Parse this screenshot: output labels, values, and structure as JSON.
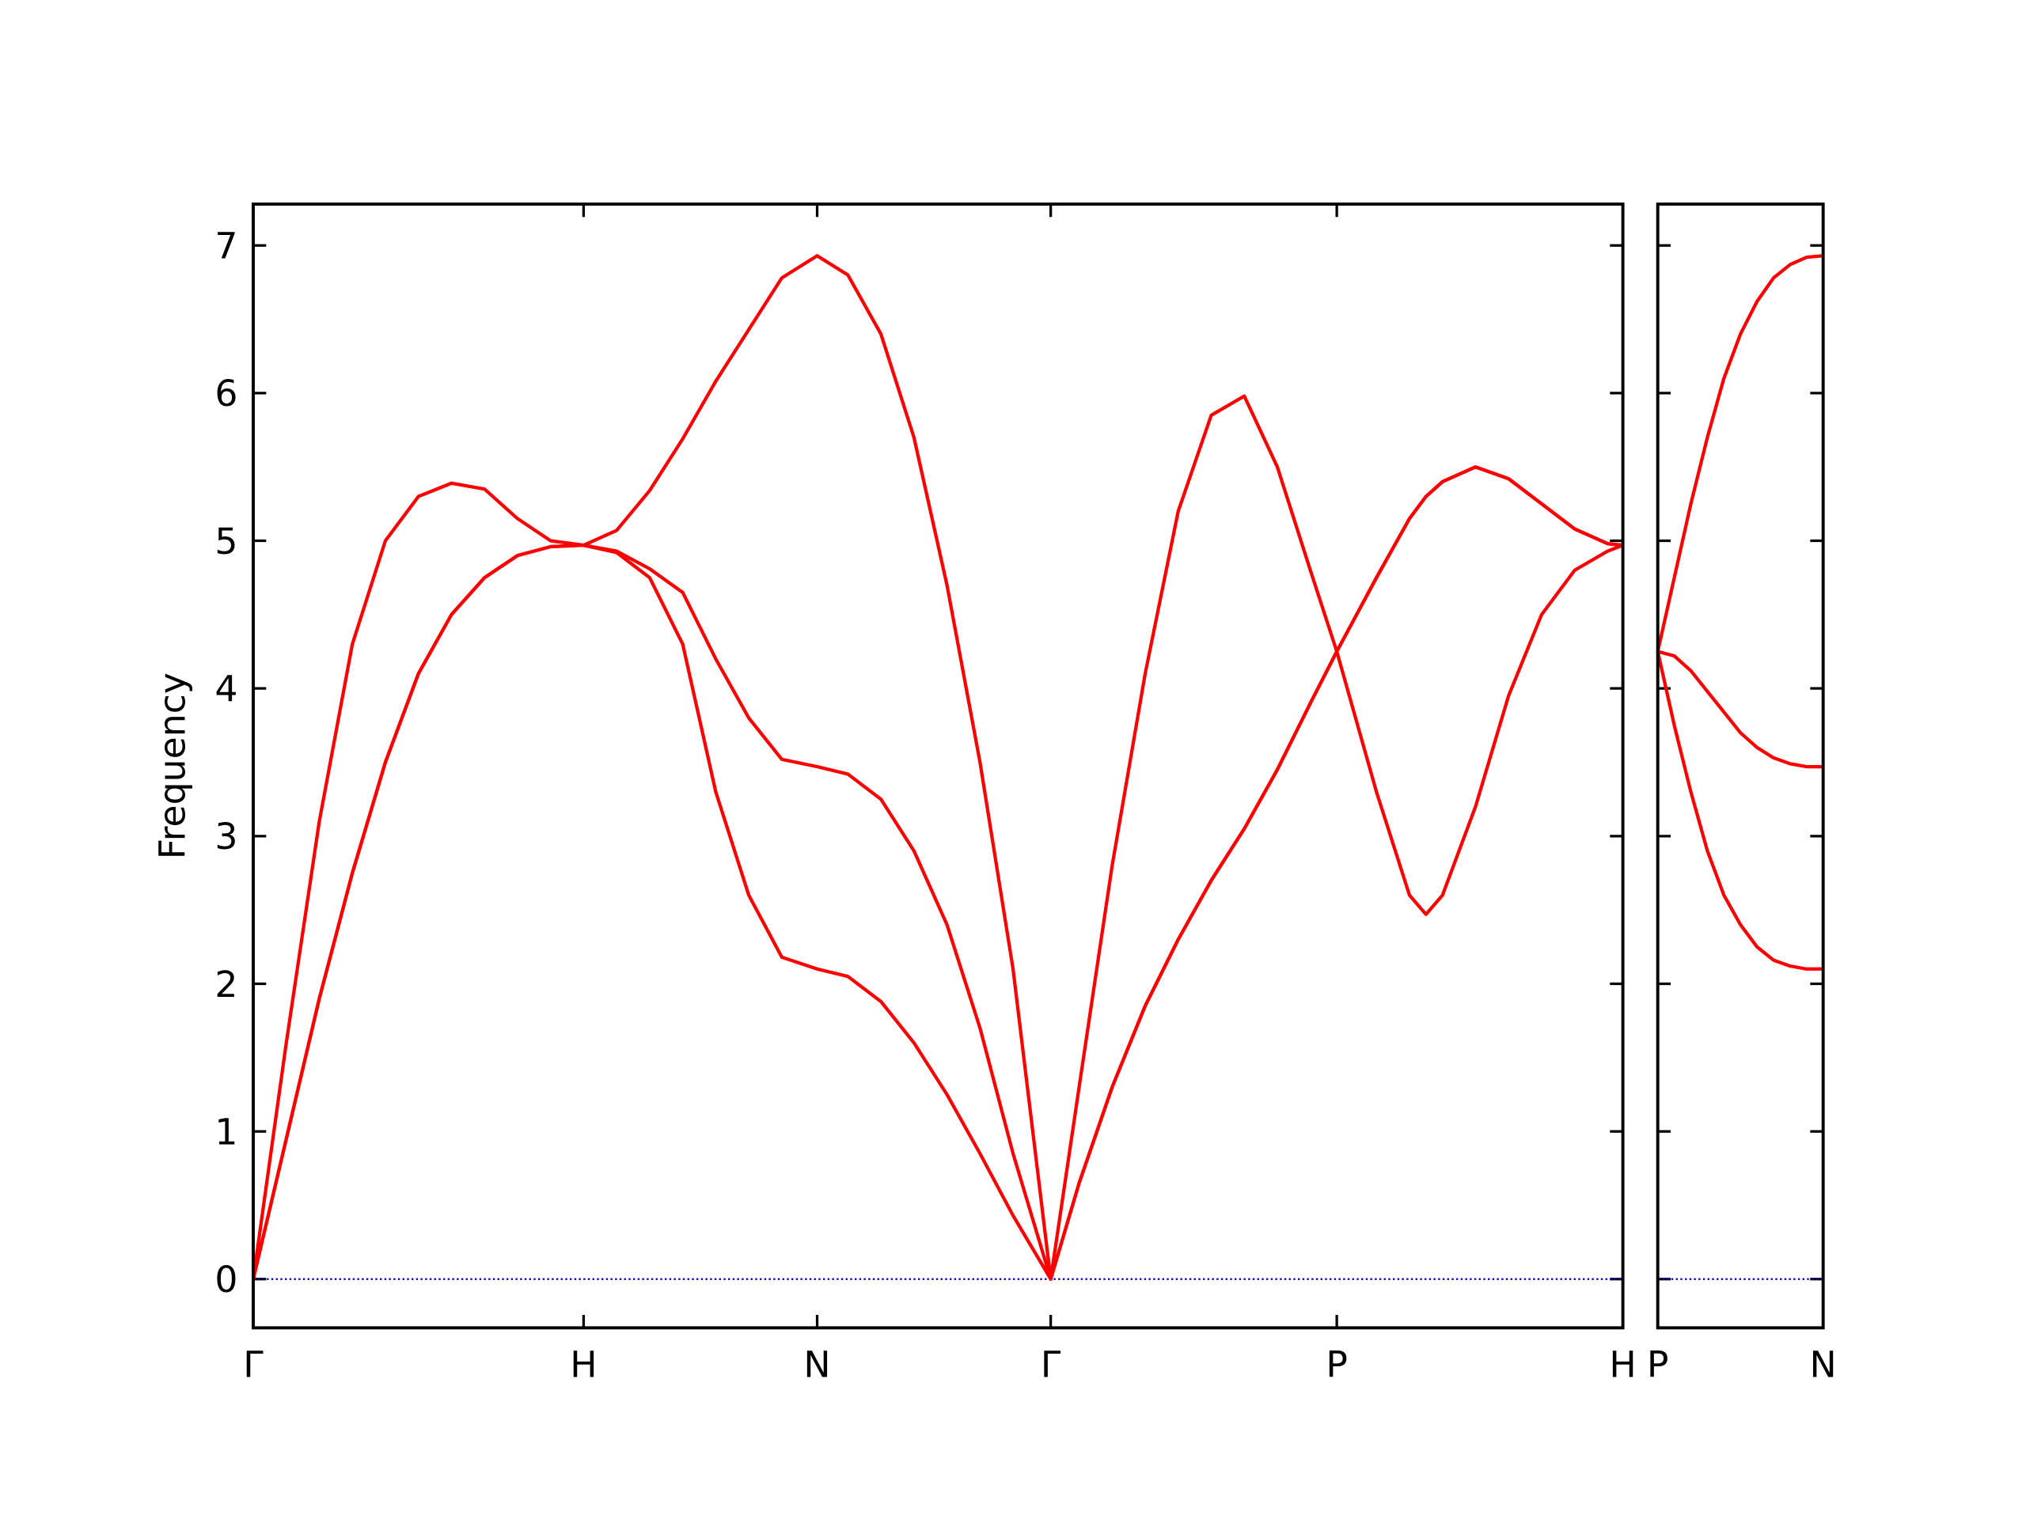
{
  "chart_data": [
    {
      "type": "line",
      "y_label": "Frequency",
      "x": [
        0,
        0.1,
        0.2,
        0.3,
        0.4,
        0.5,
        0.6,
        0.7,
        0.8,
        0.9,
        1.0,
        1.1,
        1.2,
        1.3,
        1.4,
        1.5,
        1.6,
        1.707,
        1.8,
        1.9,
        2.0,
        2.1,
        2.2,
        2.3,
        2.414,
        2.5,
        2.6,
        2.7,
        2.8,
        2.9,
        3.0,
        3.1,
        3.2,
        3.28,
        3.4,
        3.5,
        3.55,
        3.6,
        3.7,
        3.8,
        3.9,
        4.0,
        4.1,
        4.146
      ],
      "series": [
        {
          "color": "#ff0000",
          "values": [
            0,
            0.95,
            1.9,
            2.75,
            3.5,
            4.1,
            4.5,
            4.75,
            4.9,
            4.96,
            4.97,
            4.92,
            4.75,
            4.3,
            3.3,
            2.6,
            2.18,
            2.1,
            2.05,
            1.88,
            1.6,
            1.25,
            0.85,
            0.43,
            0,
            0.65,
            1.3,
            1.85,
            2.3,
            2.7,
            3.05,
            3.45,
            3.9,
            4.25,
            3.3,
            2.6,
            2.47,
            2.6,
            3.2,
            3.95,
            4.5,
            4.8,
            4.93,
            4.97
          ]
        },
        {
          "color": "#ff0000",
          "values": [
            0,
            0.95,
            1.9,
            2.75,
            3.5,
            4.1,
            4.5,
            4.75,
            4.9,
            4.96,
            4.97,
            4.93,
            4.81,
            4.65,
            4.2,
            3.8,
            3.52,
            3.47,
            3.42,
            3.25,
            2.9,
            2.4,
            1.7,
            0.85,
            0,
            0.65,
            1.3,
            1.85,
            2.3,
            2.7,
            3.05,
            3.45,
            3.9,
            4.25,
            4.75,
            5.15,
            5.3,
            5.4,
            5.5,
            5.42,
            5.25,
            5.08,
            4.98,
            4.97
          ]
        },
        {
          "color": "#ff0000",
          "values": [
            0,
            1.6,
            3.1,
            4.3,
            5.0,
            5.3,
            5.39,
            5.35,
            5.15,
            5.0,
            4.97,
            5.07,
            5.34,
            5.69,
            6.08,
            6.43,
            6.78,
            6.93,
            6.8,
            6.4,
            5.7,
            4.7,
            3.5,
            2.1,
            0,
            1.3,
            2.8,
            4.1,
            5.2,
            5.85,
            5.98,
            5.5,
            4.8,
            4.25,
            4.75,
            5.15,
            5.3,
            5.4,
            5.5,
            5.42,
            5.25,
            5.08,
            4.98,
            4.97
          ]
        }
      ],
      "hlines": [
        0
      ],
      "hline_color": "#0000cc",
      "xlim": [
        0,
        4.146
      ],
      "xticks": [
        {
          "value": 0,
          "label": "Γ"
        },
        {
          "value": 1.0,
          "label": "H"
        },
        {
          "value": 1.707,
          "label": "N"
        },
        {
          "value": 2.414,
          "label": "Γ"
        },
        {
          "value": 3.28,
          "label": "P"
        },
        {
          "value": 4.146,
          "label": "H"
        }
      ],
      "ylim": [
        -0.33,
        7.28
      ],
      "yticks": [
        0,
        1,
        2,
        3,
        4,
        5,
        6,
        7
      ],
      "ytick_labels": true
    },
    {
      "type": "line",
      "x": [
        0,
        0.05,
        0.1,
        0.15,
        0.2,
        0.25,
        0.3,
        0.35,
        0.4,
        0.45,
        0.5
      ],
      "series": [
        {
          "color": "#ff0000",
          "values": [
            4.25,
            3.75,
            3.3,
            2.9,
            2.6,
            2.4,
            2.25,
            2.16,
            2.12,
            2.1,
            2.1
          ]
        },
        {
          "color": "#ff0000",
          "values": [
            4.25,
            4.22,
            4.12,
            3.98,
            3.84,
            3.7,
            3.6,
            3.53,
            3.49,
            3.47,
            3.47
          ]
        },
        {
          "color": "#ff0000",
          "values": [
            4.25,
            4.75,
            5.25,
            5.7,
            6.1,
            6.4,
            6.62,
            6.78,
            6.87,
            6.92,
            6.93
          ]
        }
      ],
      "hlines": [
        0
      ],
      "hline_color": "#0000cc",
      "xlim": [
        0,
        0.5
      ],
      "xticks": [
        {
          "value": 0,
          "label": "P"
        },
        {
          "value": 0.5,
          "label": "N"
        }
      ],
      "ylim": [
        -0.33,
        7.28
      ],
      "yticks": [
        0,
        1,
        2,
        3,
        4,
        5,
        6,
        7
      ],
      "ytick_labels": false
    }
  ]
}
